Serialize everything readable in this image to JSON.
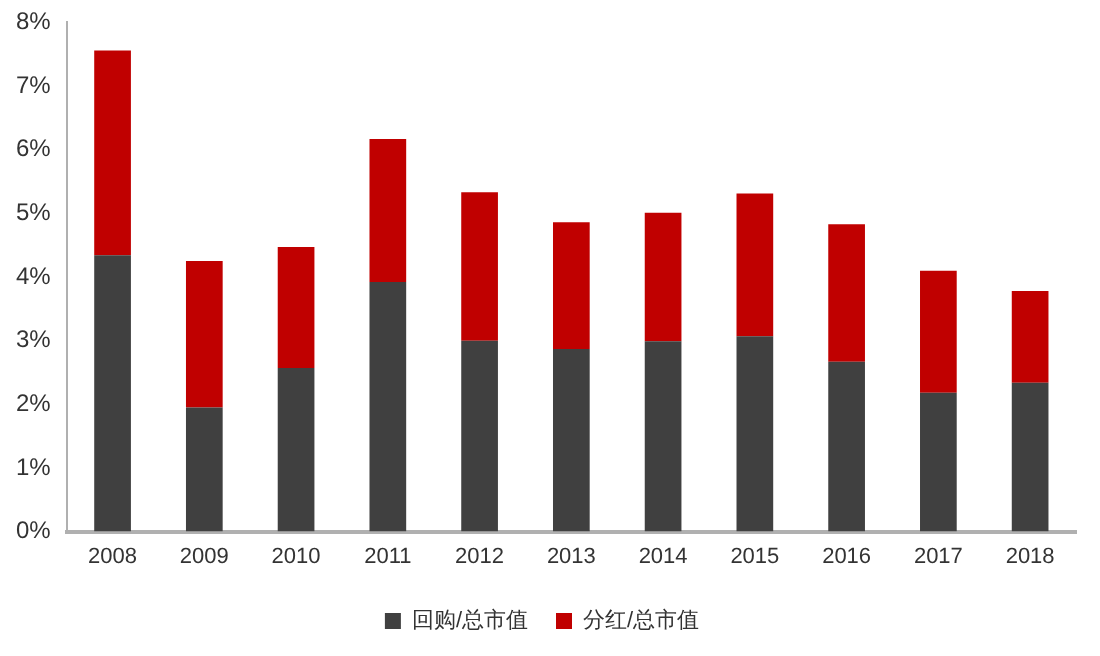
{
  "chart_data": {
    "type": "bar",
    "stacked": true,
    "categories": [
      "2008",
      "2009",
      "2010",
      "2011",
      "2012",
      "2013",
      "2014",
      "2015",
      "2016",
      "2017",
      "2018"
    ],
    "series": [
      {
        "name": "回购/总市值",
        "color": "#404040",
        "values": [
          4.34,
          1.95,
          2.57,
          3.92,
          3.0,
          2.87,
          2.99,
          3.07,
          2.67,
          2.18,
          2.34
        ]
      },
      {
        "name": "分红/总市值",
        "color": "#c00000",
        "values": [
          3.22,
          2.3,
          1.9,
          2.25,
          2.33,
          1.99,
          2.02,
          2.24,
          2.16,
          1.92,
          1.44
        ]
      }
    ],
    "ylim": [
      0,
      8
    ],
    "yticks": [
      {
        "value": 0,
        "label": "0%"
      },
      {
        "value": 1,
        "label": "1%"
      },
      {
        "value": 2,
        "label": "2%"
      },
      {
        "value": 3,
        "label": "3%"
      },
      {
        "value": 4,
        "label": "4%"
      },
      {
        "value": 5,
        "label": "5%"
      },
      {
        "value": 6,
        "label": "6%"
      },
      {
        "value": 7,
        "label": "7%"
      },
      {
        "value": 8,
        "label": "8%"
      }
    ],
    "grid": false,
    "legend": "bottom"
  }
}
